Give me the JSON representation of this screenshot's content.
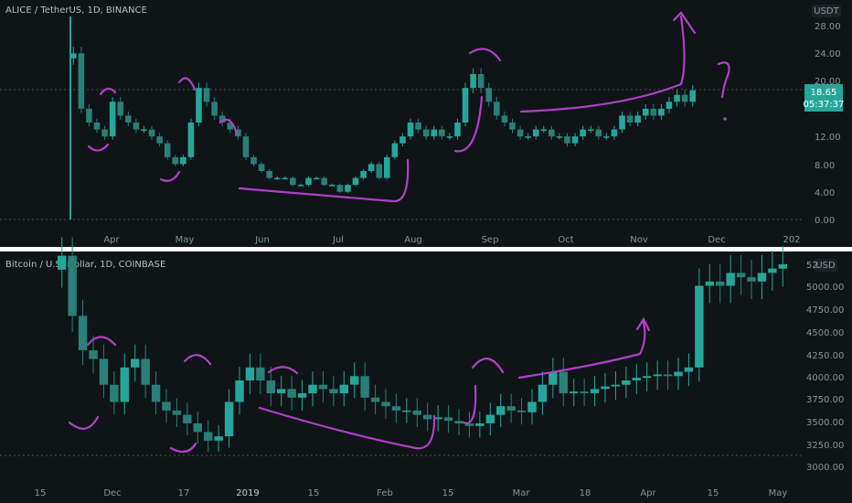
{
  "top": {
    "title": "ALICE / TetherUS, 1D, BINANCE",
    "currency": "USDT",
    "price": "18.65",
    "countdown": "05:37:37",
    "y_ticks": [
      "28.00",
      "24.00",
      "20.00",
      "16.00",
      "12.00",
      "8.00",
      "4.00",
      "0.00"
    ],
    "x_ticks": [
      "Apr",
      "May",
      "Jun",
      "Jul",
      "Aug",
      "Sep",
      "Oct",
      "Nov",
      "Dec",
      "202"
    ]
  },
  "bottom": {
    "title": "Bitcoin / U.S. Dollar, 1D, COINBASE",
    "currency": "USD",
    "y_ticks": [
      "52",
      "5000.00",
      "4750.00",
      "4500.00",
      "4250.00",
      "4000.00",
      "3750.00",
      "3500.00",
      "3250.00",
      "3000.00"
    ],
    "x_ticks": [
      "15",
      "Dec",
      "17",
      "2019",
      "15",
      "Feb",
      "15",
      "Mar",
      "18",
      "Apr",
      "15",
      "May"
    ]
  },
  "colors": {
    "up": "#26a69a",
    "down": "#2a7f78",
    "annot": "#b040c8",
    "price_tag": "#26a69a",
    "divider": "#ffffff"
  },
  "chart_data": [
    {
      "type": "candlestick",
      "title": "ALICE / TetherUS, 1D, BINANCE",
      "ylabel": "USDT",
      "ylim": [
        0,
        28
      ],
      "x_range": [
        "Mar",
        "Dec"
      ],
      "close": [
        24,
        16,
        14,
        13,
        12,
        17,
        15,
        14,
        13,
        13,
        12,
        11,
        9,
        8,
        9,
        14,
        19,
        17,
        15,
        14,
        13,
        12,
        9,
        8,
        7,
        6,
        6,
        6,
        5,
        5,
        6,
        6,
        5,
        5,
        4,
        5,
        6,
        7,
        8,
        6,
        9,
        11,
        12,
        14,
        13,
        12,
        13,
        12,
        12,
        14,
        19,
        21,
        19,
        17,
        15,
        14,
        13,
        12,
        12,
        13,
        13,
        12,
        12,
        11,
        12,
        13,
        13,
        12,
        12,
        13,
        15,
        14,
        15,
        16,
        15,
        16,
        17,
        18,
        17,
        18.65
      ],
      "last": 18.65
    },
    {
      "type": "candlestick",
      "title": "Bitcoin / U.S. Dollar, 1D, COINBASE",
      "ylabel": "USD",
      "ylim": [
        2950,
        5300
      ],
      "x_range": [
        "Nov 2018",
        "May 2019"
      ],
      "close": [
        5400,
        4700,
        4300,
        4200,
        3900,
        3700,
        4100,
        4200,
        3900,
        3700,
        3600,
        3550,
        3450,
        3350,
        3250,
        3300,
        3700,
        3950,
        4100,
        3950,
        3800,
        3850,
        3750,
        3800,
        3900,
        3850,
        3800,
        3900,
        4000,
        3750,
        3700,
        3650,
        3600,
        3600,
        3550,
        3500,
        3520,
        3480,
        3450,
        3420,
        3450,
        3550,
        3650,
        3600,
        3580,
        3700,
        3900,
        4050,
        3800,
        3820,
        3800,
        3850,
        3880,
        3900,
        3950,
        3980,
        4000,
        4020,
        4000,
        4050,
        4100,
        5050,
        5100,
        5050,
        5200,
        5150,
        5100,
        5200,
        5250,
        5300
      ]
    }
  ]
}
